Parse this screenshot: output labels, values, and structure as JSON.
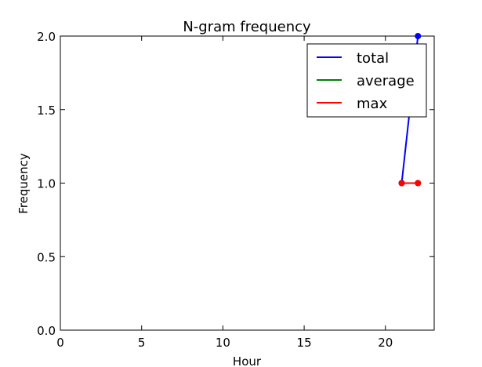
{
  "chart_data": {
    "type": "line",
    "title": "N-gram frequency",
    "xlabel": "Hour",
    "ylabel": "Frequency",
    "xlim": [
      0,
      23
    ],
    "ylim": [
      0.0,
      2.0
    ],
    "xticks": [
      0,
      5,
      10,
      15,
      20
    ],
    "xtick_labels": [
      "0",
      "5",
      "10",
      "15",
      "20"
    ],
    "yticks": [
      0.0,
      0.5,
      1.0,
      1.5,
      2.0
    ],
    "ytick_labels": [
      "0.0",
      "0.5",
      "1.0",
      "1.5",
      "2.0"
    ],
    "grid": false,
    "legend_position": "top-right",
    "series": [
      {
        "name": "total",
        "color": "#0000ff",
        "x": [
          21,
          22
        ],
        "y": [
          1,
          2
        ]
      },
      {
        "name": "average",
        "color": "#008000",
        "x": [
          21,
          22
        ],
        "y": [
          1,
          1
        ]
      },
      {
        "name": "max",
        "color": "#ff0000",
        "x": [
          21,
          22
        ],
        "y": [
          1,
          1
        ]
      }
    ]
  }
}
